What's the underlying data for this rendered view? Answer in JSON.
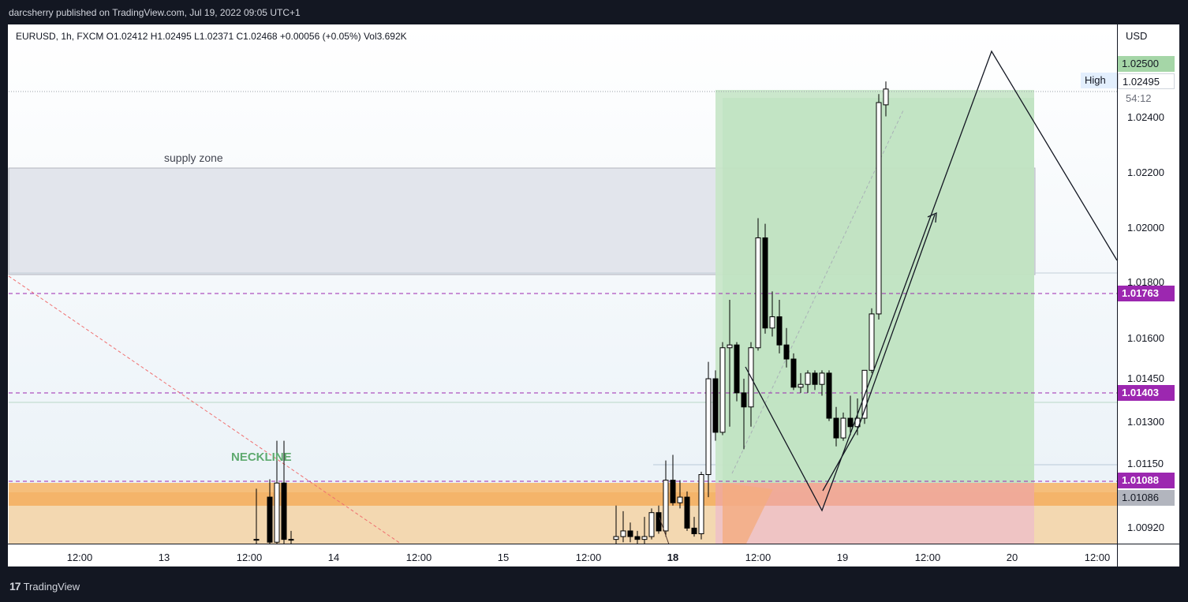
{
  "header": {
    "publish_text": "darcsherry published on TradingView.com, Jul 19, 2022 09:05 UTC+1"
  },
  "symbol_row": "EURUSD, 1h, FXCM  O1.02412  H1.02495  L1.02371  C1.02468  +0.00056 (+0.05%)  Vol3.692K",
  "price_axis": {
    "unit": "USD",
    "ticks": [
      "1.02400",
      "1.02200",
      "1.02000",
      "1.01800",
      "1.01600",
      "1.01450",
      "1.01300",
      "1.01150",
      "1.00920"
    ],
    "countdown": "54:12",
    "high_label": "High",
    "badges": {
      "tp": "1.02500",
      "high": "1.02495",
      "line1": "1.01763",
      "line2": "1.01403",
      "line3": "1.01088",
      "entry": "1.01086"
    }
  },
  "time_axis": {
    "labels": [
      "12:00",
      "13",
      "12:00",
      "14",
      "12:00",
      "15",
      "12:00",
      "18",
      "12:00",
      "19",
      "12:00",
      "20",
      "12:00"
    ]
  },
  "annotations": {
    "supply_zone": "supply zone",
    "neckline": "NECKLINE"
  },
  "footer": {
    "brand": "TradingView"
  },
  "colors": {
    "background": "#131722",
    "bull_candle": "#ffffff",
    "bear_candle": "#000000",
    "target_zone": "#c8e6c9",
    "stop_zone": "#f4b6b6",
    "supply_zone": "#e0e3eb",
    "demand_zone": "#f7c98b",
    "level_line": "#9c27b0",
    "tp_badge": "#a5d6a7",
    "level_badge": "#9c27b0",
    "entry_badge": "#b2b5be"
  },
  "chart_data": {
    "type": "candlestick",
    "symbol": "EURUSD",
    "timeframe": "1h",
    "ylim": [
      1.00855,
      1.0263
    ],
    "horizontal_levels": [
      1.01763,
      1.01403,
      1.01088
    ],
    "target_price": 1.025,
    "entry_price": 1.01086,
    "high_price": 1.02495,
    "candles": [
      {
        "o": 1.0102,
        "h": 1.01083,
        "l": 1.00855,
        "c": 1.0086
      },
      {
        "o": 1.0086,
        "h": 1.0122,
        "l": 1.00855,
        "c": 1.0107
      },
      {
        "o": 1.0107,
        "h": 1.0122,
        "l": 1.00855,
        "c": 1.0087
      },
      {
        "o": 1.0087,
        "h": 1.0105,
        "l": 1.00855,
        "c": 1.0087
      },
      {
        "o": 1.0087,
        "h": 1.009,
        "l": 1.00855,
        "c": 1.0087
      },
      {
        "o": 1.0087,
        "h": 1.0099,
        "l": 1.00855,
        "c": 1.0088
      },
      {
        "o": 1.0088,
        "h": 1.0097,
        "l": 1.0086,
        "c": 1.009
      },
      {
        "o": 1.009,
        "h": 1.0093,
        "l": 1.0086,
        "c": 1.0088
      },
      {
        "o": 1.0088,
        "h": 1.009,
        "l": 1.00855,
        "c": 1.0087
      },
      {
        "o": 1.0087,
        "h": 1.0095,
        "l": 1.00855,
        "c": 1.0088
      },
      {
        "o": 1.0088,
        "h": 1.0098,
        "l": 1.0087,
        "c": 1.00965
      },
      {
        "o": 1.00965,
        "h": 1.0099,
        "l": 1.0089,
        "c": 1.009
      },
      {
        "o": 1.009,
        "h": 1.0115,
        "l": 1.0088,
        "c": 1.0108
      },
      {
        "o": 1.0108,
        "h": 1.0117,
        "l": 1.0099,
        "c": 1.01
      },
      {
        "o": 1.01,
        "h": 1.0108,
        "l": 1.0098,
        "c": 1.0102
      },
      {
        "o": 1.0102,
        "h": 1.0104,
        "l": 1.009,
        "c": 1.0091
      },
      {
        "o": 1.0091,
        "h": 1.0095,
        "l": 1.0088,
        "c": 1.0089
      },
      {
        "o": 1.0089,
        "h": 1.0111,
        "l": 1.0087,
        "c": 1.011
      },
      {
        "o": 1.011,
        "h": 1.015,
        "l": 1.0102,
        "c": 1.0144
      },
      {
        "o": 1.0144,
        "h": 1.0147,
        "l": 1.0122,
        "c": 1.0125
      },
      {
        "o": 1.0125,
        "h": 1.0157,
        "l": 1.0124,
        "c": 1.0155
      },
      {
        "o": 1.0155,
        "h": 1.0172,
        "l": 1.0127,
        "c": 1.0156
      },
      {
        "o": 1.0156,
        "h": 1.0157,
        "l": 1.0136,
        "c": 1.0139
      },
      {
        "o": 1.0139,
        "h": 1.0144,
        "l": 1.0119,
        "c": 1.0134
      },
      {
        "o": 1.0134,
        "h": 1.0157,
        "l": 1.0127,
        "c": 1.0155
      },
      {
        "o": 1.0155,
        "h": 1.0201,
        "l": 1.0154,
        "c": 1.0194
      },
      {
        "o": 1.0194,
        "h": 1.0199,
        "l": 1.016,
        "c": 1.0162
      },
      {
        "o": 1.0162,
        "h": 1.0175,
        "l": 1.0159,
        "c": 1.0166
      },
      {
        "o": 1.0166,
        "h": 1.0172,
        "l": 1.0153,
        "c": 1.0156
      },
      {
        "o": 1.0156,
        "h": 1.0162,
        "l": 1.0148,
        "c": 1.0151
      },
      {
        "o": 1.0151,
        "h": 1.0153,
        "l": 1.014,
        "c": 1.0141
      },
      {
        "o": 1.0141,
        "h": 1.0146,
        "l": 1.0139,
        "c": 1.0142
      },
      {
        "o": 1.0142,
        "h": 1.0147,
        "l": 1.0139,
        "c": 1.0146
      },
      {
        "o": 1.0146,
        "h": 1.0147,
        "l": 1.014,
        "c": 1.0142
      },
      {
        "o": 1.0142,
        "h": 1.0147,
        "l": 1.0138,
        "c": 1.0146
      },
      {
        "o": 1.0146,
        "h": 1.0147,
        "l": 1.0129,
        "c": 1.013
      },
      {
        "o": 1.013,
        "h": 1.0134,
        "l": 1.012,
        "c": 1.0123
      },
      {
        "o": 1.0123,
        "h": 1.0132,
        "l": 1.0122,
        "c": 1.013
      },
      {
        "o": 1.013,
        "h": 1.0138,
        "l": 1.0124,
        "c": 1.0127
      },
      {
        "o": 1.0127,
        "h": 1.0137,
        "l": 1.0124,
        "c": 1.013
      },
      {
        "o": 1.013,
        "h": 1.0147,
        "l": 1.0128,
        "c": 1.0147
      },
      {
        "o": 1.0147,
        "h": 1.0169,
        "l": 1.0146,
        "c": 1.0167
      },
      {
        "o": 1.0167,
        "h": 1.0245,
        "l": 1.0165,
        "c": 1.0242
      },
      {
        "o": 1.02412,
        "h": 1.02495,
        "l": 1.02371,
        "c": 1.02468
      }
    ]
  }
}
